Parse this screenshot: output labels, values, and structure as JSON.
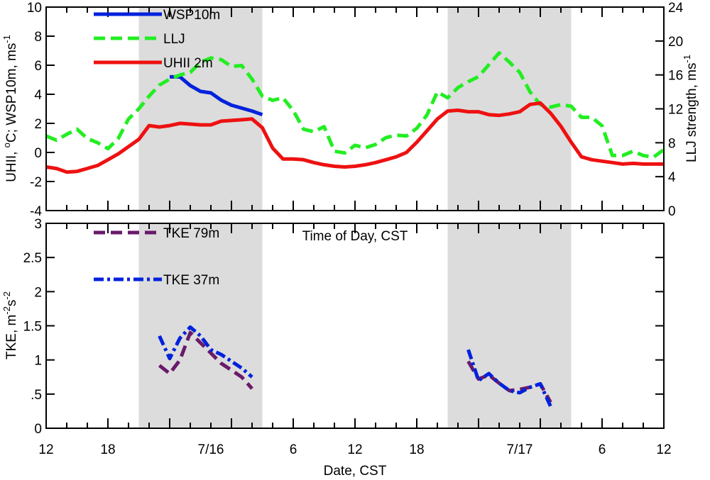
{
  "chart_data": [
    {
      "type": "line",
      "panel": "top",
      "xlim": [
        12,
        72
      ],
      "ylim": [
        -4,
        10
      ],
      "y2lim": [
        0,
        24
      ],
      "ylabel_parts": [
        "UHII, ",
        "o",
        "C; WSP10m, ms",
        "-1"
      ],
      "y2label_parts": [
        "LLJ strength, ms",
        "-1"
      ],
      "xlabel_inner": "Time of Day, CST",
      "yticks": [
        -4,
        -2,
        0,
        2,
        4,
        6,
        8,
        10
      ],
      "yticklabels": [
        "-4",
        "-2",
        "0",
        "2",
        "4",
        "6",
        "8",
        "10"
      ],
      "y2ticks": [
        0,
        4,
        8,
        12,
        16,
        20,
        24
      ],
      "y2ticklabels": [
        "0",
        "4",
        "8",
        "12",
        "16",
        "20",
        "24"
      ],
      "shaded": [
        [
          21,
          33
        ],
        [
          51,
          63
        ]
      ],
      "series": [
        {
          "name": "WSP10m",
          "color": "#0022dd",
          "dash": "solid",
          "axis": "left",
          "x": [
            24,
            25,
            26,
            27,
            28,
            29,
            30,
            31,
            32,
            33
          ],
          "y": [
            5.2,
            5.2,
            4.6,
            4.2,
            4.1,
            3.6,
            3.25,
            3.05,
            2.85,
            2.6
          ]
        },
        {
          "name": "LLJ",
          "color": "#22ee22",
          "dash": "dashed",
          "axis": "right",
          "x": [
            12,
            13,
            14,
            15,
            16,
            17,
            18,
            19,
            20,
            21,
            22,
            23,
            24,
            25,
            26,
            27,
            28,
            29,
            30,
            31,
            32,
            33,
            34,
            35,
            36,
            37,
            38,
            39,
            40,
            41,
            42,
            43,
            44,
            45,
            46,
            47,
            48,
            49,
            50,
            51,
            52,
            53,
            54,
            55,
            56,
            57,
            58,
            59,
            60,
            61,
            62,
            63,
            64,
            65,
            66,
            67,
            68,
            69,
            70,
            71,
            72
          ],
          "y": [
            8.8,
            8.3,
            9.0,
            9.6,
            8.5,
            8.0,
            7.3,
            8.5,
            10.8,
            12.0,
            13.5,
            14.8,
            15.5,
            16.0,
            16.3,
            17.5,
            18.0,
            17.8,
            17.0,
            17.1,
            15.5,
            13.5,
            13.0,
            13.3,
            11.8,
            9.6,
            9.3,
            9.9,
            7.0,
            6.8,
            7.7,
            7.4,
            7.8,
            8.6,
            8.9,
            8.8,
            9.7,
            11.3,
            14.0,
            13.3,
            14.5,
            15.2,
            15.8,
            17.2,
            18.6,
            17.5,
            16.3,
            14.0,
            12.5,
            12.2,
            12.5,
            12.3,
            11.0,
            11.0,
            10.0,
            6.5,
            6.5,
            7.0,
            6.5,
            6.3,
            7.2
          ]
        },
        {
          "name": "UHII 2m",
          "color": "#ee1111",
          "dash": "solid",
          "axis": "left",
          "x": [
            12,
            13,
            14,
            15,
            16,
            17,
            18,
            19,
            20,
            21,
            22,
            23,
            24,
            25,
            26,
            27,
            28,
            29,
            30,
            31,
            32,
            33,
            34,
            35,
            36,
            37,
            38,
            39,
            40,
            41,
            42,
            43,
            44,
            45,
            46,
            47,
            48,
            49,
            50,
            51,
            52,
            53,
            54,
            55,
            56,
            57,
            58,
            59,
            60,
            61,
            62,
            63,
            64,
            65,
            66,
            67,
            68,
            69,
            70,
            71,
            72
          ],
          "y": [
            -1.0,
            -1.1,
            -1.35,
            -1.3,
            -1.1,
            -0.9,
            -0.5,
            -0.1,
            0.4,
            0.9,
            1.85,
            1.75,
            1.85,
            2.0,
            1.95,
            1.9,
            1.9,
            2.15,
            2.2,
            2.25,
            2.3,
            1.7,
            0.3,
            -0.45,
            -0.45,
            -0.5,
            -0.7,
            -0.85,
            -0.95,
            -1.0,
            -0.95,
            -0.85,
            -0.7,
            -0.5,
            -0.3,
            0.0,
            0.7,
            1.5,
            2.3,
            2.85,
            2.9,
            2.8,
            2.8,
            2.6,
            2.55,
            2.65,
            2.8,
            3.3,
            3.4,
            2.7,
            1.8,
            0.7,
            -0.3,
            -0.5,
            -0.6,
            -0.7,
            -0.8,
            -0.75,
            -0.8,
            -0.8,
            -0.8
          ]
        }
      ]
    },
    {
      "type": "line",
      "panel": "bottom",
      "xlim": [
        12,
        72
      ],
      "ylim": [
        0,
        3
      ],
      "xlabel": "Date, CST",
      "ylabel_parts": [
        "TKE, m",
        "-2",
        "s",
        "-2"
      ],
      "yticks": [
        0,
        0.5,
        1,
        1.5,
        2,
        2.5,
        3
      ],
      "yticklabels": [
        "0",
        ".5",
        "1",
        "1.5",
        "2",
        "2.5",
        "3"
      ],
      "xticks": [
        12,
        18,
        24,
        30,
        36,
        42,
        48,
        54,
        60,
        66,
        72
      ],
      "xticklabels": [
        "12",
        "18",
        "",
        "",
        "6",
        "12",
        "18",
        "",
        "",
        "6",
        "12"
      ],
      "date_labels": [
        {
          "x": 28,
          "label": "7/16"
        },
        {
          "x": 58,
          "label": "7/17"
        }
      ],
      "shaded": [
        [
          21,
          33
        ],
        [
          51,
          63
        ]
      ],
      "series": [
        {
          "name": "TKE 79m",
          "color": "#6a1a6a",
          "dash": "dashed",
          "x": [
            23,
            24,
            25,
            26,
            27,
            28,
            29,
            30,
            31,
            32,
            33
          ],
          "y": [
            0.92,
            0.8,
            1.0,
            1.4,
            1.25,
            1.1,
            0.95,
            0.85,
            0.75,
            0.58,
            null
          ]
        },
        {
          "name": "TKE 37m",
          "color": "#0022dd",
          "dash": "dashdot",
          "x": [
            23,
            24,
            25,
            26,
            27,
            28,
            29,
            30,
            31,
            32,
            33
          ],
          "y": [
            1.35,
            1.02,
            1.32,
            1.48,
            1.35,
            1.15,
            1.08,
            0.98,
            0.88,
            0.75,
            null
          ]
        },
        {
          "name": "TKE 79m (2)",
          "color": "#6a1a6a",
          "dash": "dashed",
          "x": [
            53,
            54,
            55,
            56,
            57,
            58,
            59,
            60,
            61,
            62,
            63
          ],
          "y": [
            0.98,
            0.72,
            0.78,
            0.66,
            0.55,
            0.57,
            0.6,
            0.65,
            0.38,
            null,
            null
          ]
        },
        {
          "name": "TKE 37m (2)",
          "color": "#0022dd",
          "dash": "dashdot",
          "x": [
            53,
            54,
            55,
            56,
            57,
            58,
            59,
            60,
            61,
            62,
            63
          ],
          "y": [
            1.15,
            0.7,
            0.8,
            0.66,
            0.55,
            0.52,
            0.6,
            0.65,
            0.32,
            null,
            null
          ]
        }
      ]
    }
  ],
  "legend": {
    "top": [
      {
        "label": "WSP10m",
        "color": "#0022dd",
        "dash": "solid"
      },
      {
        "label": "LLJ",
        "color": "#22ee22",
        "dash": "dashed"
      },
      {
        "label": "UHII 2m",
        "color": "#ee1111",
        "dash": "solid"
      }
    ],
    "bottom": [
      {
        "label": "TKE 79m",
        "color": "#6a1a6a",
        "dash": "dashed"
      },
      {
        "label": "TKE 37m",
        "color": "#0022dd",
        "dash": "dashdot"
      }
    ]
  },
  "colors": {
    "shade": "#dcdcdc"
  }
}
